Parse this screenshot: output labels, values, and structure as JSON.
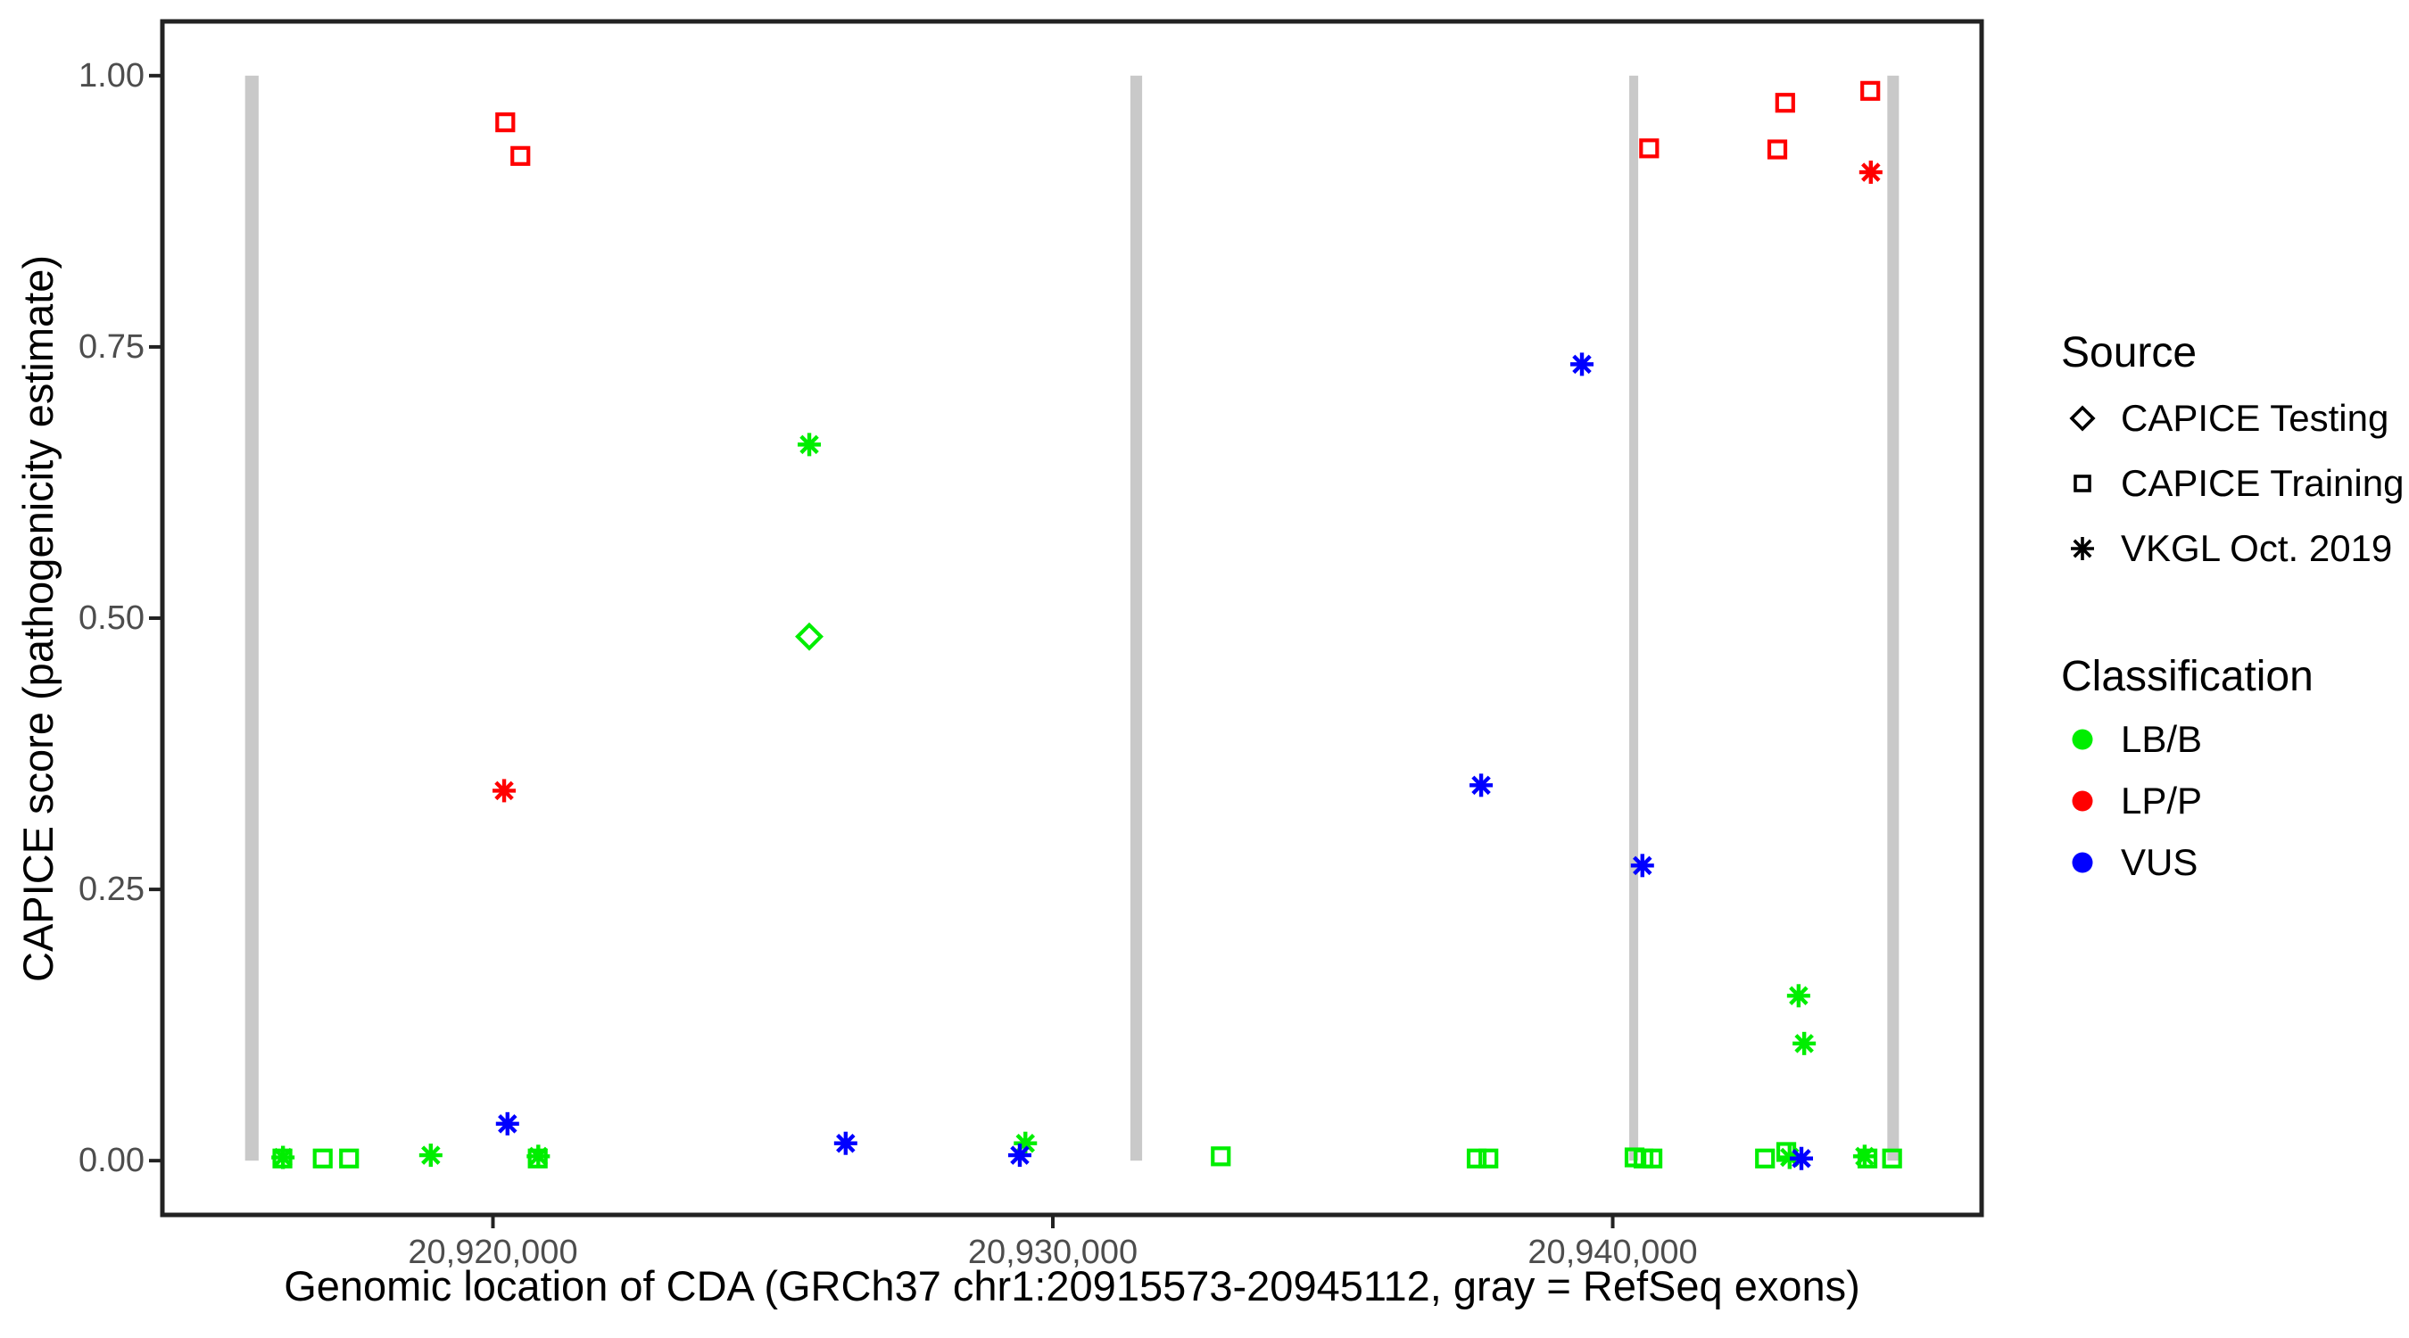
{
  "chart_data": {
    "type": "scatter",
    "title": "",
    "xlabel": "Genomic location of CDA (GRCh37 chr1:20915573-20945112, gray = RefSeq exons)",
    "ylabel": "CAPICE score (pathogenicity estimate)",
    "xlim": [
      20915573,
      20945112
    ],
    "ylim": [
      0,
      1
    ],
    "axis_expansion": 0.05,
    "grid": "off",
    "legend_position": "right",
    "x_ticks": [
      {
        "value": 20920000,
        "label": "20,920,000"
      },
      {
        "value": 20930000,
        "label": "20,930,000"
      },
      {
        "value": 20940000,
        "label": "20,940,000"
      }
    ],
    "y_ticks": [
      {
        "value": 0.0,
        "label": "0.00"
      },
      {
        "value": 0.25,
        "label": "0.25"
      },
      {
        "value": 0.5,
        "label": "0.50"
      },
      {
        "value": 0.75,
        "label": "0.75"
      },
      {
        "value": 1.0,
        "label": "1.00"
      }
    ],
    "exons": {
      "color": "#c9c9c9",
      "note": "gray = RefSeq exons",
      "ranges": [
        [
          20915573,
          20915815
        ],
        [
          20931385,
          20931595
        ],
        [
          20940295,
          20940455
        ],
        [
          20944905,
          20945112
        ]
      ]
    },
    "classification_colors": {
      "LB/B": "#00ee00",
      "LP/P": "#ff0000",
      "VUS": "#0000ff"
    },
    "source_shapes": {
      "CAPICE Testing": "diamond",
      "CAPICE Training": "square",
      "VKGL Oct. 2019": "asterisk"
    },
    "points": [
      {
        "bp": 20920220,
        "score": 0.957,
        "classification": "LP/P",
        "source": "CAPICE Training"
      },
      {
        "bp": 20920490,
        "score": 0.926,
        "classification": "LP/P",
        "source": "CAPICE Training"
      },
      {
        "bp": 20940650,
        "score": 0.933,
        "classification": "LP/P",
        "source": "CAPICE Training"
      },
      {
        "bp": 20942940,
        "score": 0.932,
        "classification": "LP/P",
        "source": "CAPICE Training"
      },
      {
        "bp": 20943080,
        "score": 0.975,
        "classification": "LP/P",
        "source": "CAPICE Training"
      },
      {
        "bp": 20944600,
        "score": 0.986,
        "classification": "LP/P",
        "source": "CAPICE Training"
      },
      {
        "bp": 20916240,
        "score": 0.002,
        "classification": "LB/B",
        "source": "CAPICE Training"
      },
      {
        "bp": 20916960,
        "score": 0.002,
        "classification": "LB/B",
        "source": "CAPICE Training"
      },
      {
        "bp": 20917430,
        "score": 0.002,
        "classification": "LB/B",
        "source": "CAPICE Training"
      },
      {
        "bp": 20920800,
        "score": 0.002,
        "classification": "LB/B",
        "source": "CAPICE Training"
      },
      {
        "bp": 20933000,
        "score": 0.004,
        "classification": "LB/B",
        "source": "CAPICE Training"
      },
      {
        "bp": 20937570,
        "score": 0.002,
        "classification": "LB/B",
        "source": "CAPICE Training"
      },
      {
        "bp": 20937780,
        "score": 0.002,
        "classification": "LB/B",
        "source": "CAPICE Training"
      },
      {
        "bp": 20940390,
        "score": 0.003,
        "classification": "LB/B",
        "source": "CAPICE Training"
      },
      {
        "bp": 20940550,
        "score": 0.002,
        "classification": "LB/B",
        "source": "CAPICE Training"
      },
      {
        "bp": 20940710,
        "score": 0.002,
        "classification": "LB/B",
        "source": "CAPICE Training"
      },
      {
        "bp": 20942720,
        "score": 0.002,
        "classification": "LB/B",
        "source": "CAPICE Training"
      },
      {
        "bp": 20943100,
        "score": 0.008,
        "classification": "LB/B",
        "source": "CAPICE Training"
      },
      {
        "bp": 20944550,
        "score": 0.002,
        "classification": "LB/B",
        "source": "CAPICE Training"
      },
      {
        "bp": 20944990,
        "score": 0.002,
        "classification": "LB/B",
        "source": "CAPICE Training"
      },
      {
        "bp": 20925650,
        "score": 0.483,
        "classification": "LB/B",
        "source": "CAPICE Testing"
      },
      {
        "bp": 20916250,
        "score": 0.003,
        "classification": "LB/B",
        "source": "VKGL Oct. 2019"
      },
      {
        "bp": 20918890,
        "score": 0.005,
        "classification": "LB/B",
        "source": "VKGL Oct. 2019"
      },
      {
        "bp": 20920810,
        "score": 0.004,
        "classification": "LB/B",
        "source": "VKGL Oct. 2019"
      },
      {
        "bp": 20925650,
        "score": 0.66,
        "classification": "LB/B",
        "source": "VKGL Oct. 2019"
      },
      {
        "bp": 20929510,
        "score": 0.016,
        "classification": "LB/B",
        "source": "VKGL Oct. 2019"
      },
      {
        "bp": 20943160,
        "score": 0.003,
        "classification": "LB/B",
        "source": "VKGL Oct. 2019"
      },
      {
        "bp": 20943320,
        "score": 0.152,
        "classification": "LB/B",
        "source": "VKGL Oct. 2019"
      },
      {
        "bp": 20943420,
        "score": 0.108,
        "classification": "LB/B",
        "source": "VKGL Oct. 2019"
      },
      {
        "bp": 20944500,
        "score": 0.004,
        "classification": "LB/B",
        "source": "VKGL Oct. 2019"
      },
      {
        "bp": 20920200,
        "score": 0.341,
        "classification": "LP/P",
        "source": "VKGL Oct. 2019"
      },
      {
        "bp": 20944610,
        "score": 0.911,
        "classification": "LP/P",
        "source": "VKGL Oct. 2019"
      },
      {
        "bp": 20920260,
        "score": 0.034,
        "classification": "VUS",
        "source": "VKGL Oct. 2019"
      },
      {
        "bp": 20926300,
        "score": 0.016,
        "classification": "VUS",
        "source": "VKGL Oct. 2019"
      },
      {
        "bp": 20929410,
        "score": 0.005,
        "classification": "VUS",
        "source": "VKGL Oct. 2019"
      },
      {
        "bp": 20937650,
        "score": 0.346,
        "classification": "VUS",
        "source": "VKGL Oct. 2019"
      },
      {
        "bp": 20939450,
        "score": 0.734,
        "classification": "VUS",
        "source": "VKGL Oct. 2019"
      },
      {
        "bp": 20940530,
        "score": 0.272,
        "classification": "VUS",
        "source": "VKGL Oct. 2019"
      },
      {
        "bp": 20943370,
        "score": 0.002,
        "classification": "VUS",
        "source": "VKGL Oct. 2019"
      }
    ]
  },
  "legend": {
    "source": {
      "title": "Source",
      "items": [
        {
          "label": "CAPICE Testing",
          "shape": "diamond"
        },
        {
          "label": "CAPICE Training",
          "shape": "square"
        },
        {
          "label": "VKGL Oct. 2019",
          "shape": "asterisk"
        }
      ]
    },
    "classification": {
      "title": "Classification",
      "items": [
        {
          "label": "LB/B",
          "color": "#00ee00"
        },
        {
          "label": "LP/P",
          "color": "#ff0000"
        },
        {
          "label": "VUS",
          "color": "#0000ff"
        }
      ]
    }
  }
}
